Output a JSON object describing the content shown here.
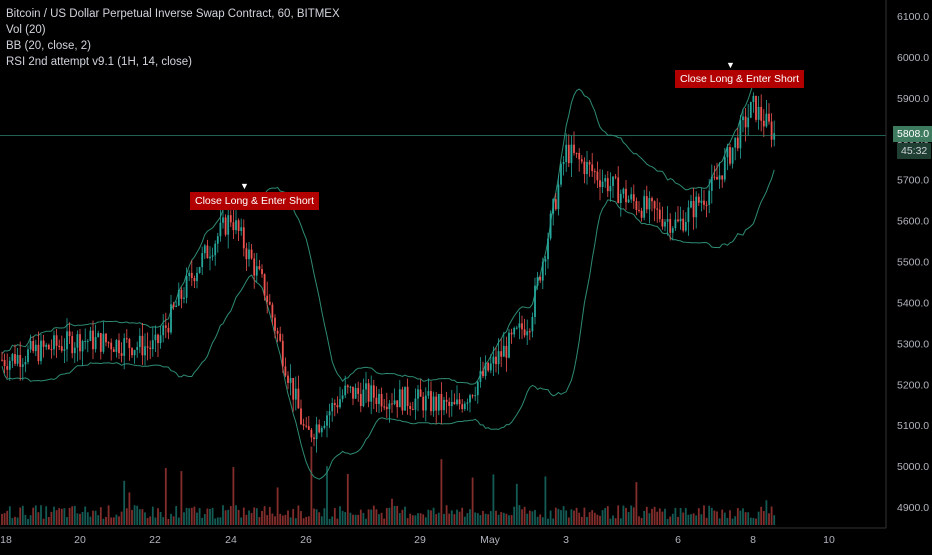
{
  "legend": {
    "symbol": "Bitcoin / US Dollar Perpetual Inverse Swap Contract, 60, BITMEX",
    "vol": "Vol (20)",
    "bb": "BB (20, close, 2)",
    "rsi": "RSI 2nd attempt v9.1 (1H, 14, close)"
  },
  "signals": [
    {
      "label": "Close Long & Enter Short",
      "marker": "▼"
    },
    {
      "label": "Close Long & Enter Short",
      "marker": "▼"
    }
  ],
  "last_price": "5808.0",
  "countdown": "45:32",
  "colors": {
    "background": "#000000",
    "up": "#26a69a",
    "down": "#ef5350",
    "bb_band": "#2e8b74",
    "signal_bg": "#b20000",
    "price_tag": "#3d7a5e"
  },
  "chart_data": {
    "type": "candlestick",
    "y_ticks": [
      "6100.0",
      "6000.0",
      "5900.0",
      "5800.0",
      "5700.0",
      "5600.0",
      "5500.0",
      "5400.0",
      "5300.0",
      "5200.0",
      "5100.0",
      "5000.0",
      "4900.0"
    ],
    "x_ticks": [
      "18",
      "20",
      "22",
      "24",
      "26",
      "29",
      "May",
      "3",
      "6",
      "8",
      "10"
    ],
    "ylim": [
      4870,
      6110
    ],
    "price_path_keypoints": [
      {
        "x": "18",
        "close": 5260
      },
      {
        "x": "20",
        "close": 5310
      },
      {
        "x": "22",
        "close": 5290
      },
      {
        "x": "23",
        "close": 5480
      },
      {
        "x": "24",
        "close": 5610
      },
      {
        "x": "25",
        "close": 5430
      },
      {
        "x": "26",
        "close": 5070
      },
      {
        "x": "27",
        "close": 5180
      },
      {
        "x": "29",
        "close": 5160
      },
      {
        "x": "30",
        "close": 5140
      },
      {
        "x": "May",
        "close": 5240
      },
      {
        "x": "2",
        "close": 5360
      },
      {
        "x": "3",
        "close": 5770
      },
      {
        "x": "5",
        "close": 5650
      },
      {
        "x": "6",
        "close": 5590
      },
      {
        "x": "7",
        "close": 5690
      },
      {
        "x": "8",
        "close": 5880
      },
      {
        "x": "8.5",
        "close": 5808
      }
    ],
    "signals_at": [
      "24",
      "7"
    ]
  }
}
